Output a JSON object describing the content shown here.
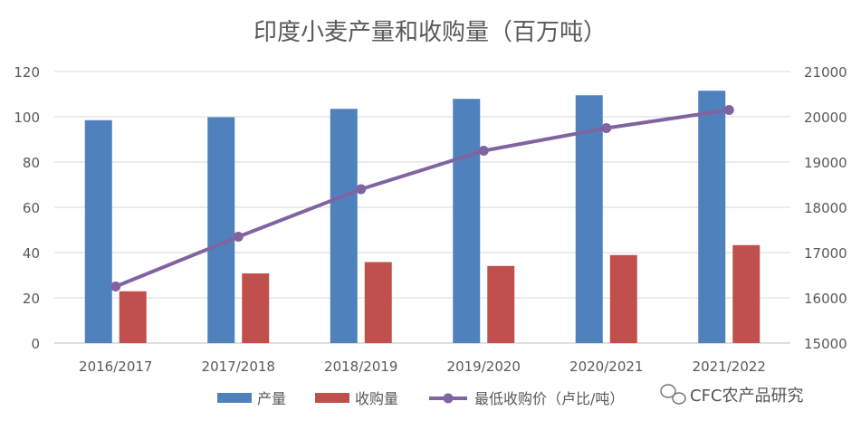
{
  "chart_data": {
    "type": "bar",
    "title": "印度小麦产量和收购量（百万吨）",
    "categories": [
      "2016/2017",
      "2017/2018",
      "2018/2019",
      "2019/2020",
      "2020/2021",
      "2021/2022"
    ],
    "series": [
      {
        "name": "产量",
        "type": "bar",
        "axis": "left",
        "color": "#4F81BD",
        "values": [
          98.5,
          99.8,
          103.5,
          107.9,
          109.5,
          111.5
        ]
      },
      {
        "name": "收购量",
        "type": "bar",
        "axis": "left",
        "color": "#C0504D",
        "values": [
          22.9,
          30.8,
          35.8,
          34.1,
          38.9,
          43.3
        ]
      },
      {
        "name": "最低收购价（卢比/吨）",
        "type": "line",
        "axis": "right",
        "color": "#8064A2",
        "values": [
          16250,
          17350,
          18400,
          19250,
          19750,
          20150
        ]
      }
    ],
    "y_left": {
      "min": 0,
      "max": 120,
      "ticks": [
        "0",
        "20",
        "40",
        "60",
        "80",
        "100",
        "120"
      ]
    },
    "y_right": {
      "min": 15000,
      "max": 21000,
      "ticks": [
        "15000",
        "16000",
        "17000",
        "18000",
        "19000",
        "20000",
        "21000"
      ]
    },
    "grid": true,
    "legend_position": "bottom"
  },
  "watermark": "CFC农产品研究"
}
